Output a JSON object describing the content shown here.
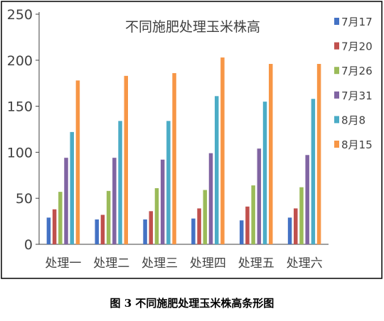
{
  "chart_data": {
    "type": "bar",
    "title": "不同施肥处理玉米株高",
    "categories": [
      "处理一",
      "处理二",
      "处理三",
      "处理四",
      "处理五",
      "处理六"
    ],
    "ylim": [
      0,
      250
    ],
    "yticks": [
      0,
      50,
      100,
      150,
      200,
      250
    ],
    "grid": false,
    "legend_position": "right",
    "series": [
      {
        "name": "7月17",
        "color": "#4472C4",
        "values": [
          29,
          27,
          27,
          28,
          26,
          29
        ]
      },
      {
        "name": "7月20",
        "color": "#C0504D",
        "values": [
          38,
          32,
          36,
          39,
          41,
          39
        ]
      },
      {
        "name": "7月26",
        "color": "#9BBB59",
        "values": [
          57,
          58,
          61,
          59,
          64,
          62
        ]
      },
      {
        "name": "7月31",
        "color": "#8064A2",
        "values": [
          94,
          94,
          92,
          99,
          104,
          97
        ]
      },
      {
        "name": "8月8",
        "color": "#4BACC6",
        "values": [
          122,
          134,
          134,
          161,
          155,
          158
        ]
      },
      {
        "name": "8月15",
        "color": "#F79646",
        "values": [
          178,
          183,
          186,
          203,
          196,
          196
        ]
      }
    ]
  },
  "caption": "图 3  不同施肥处理玉米株高条形图"
}
